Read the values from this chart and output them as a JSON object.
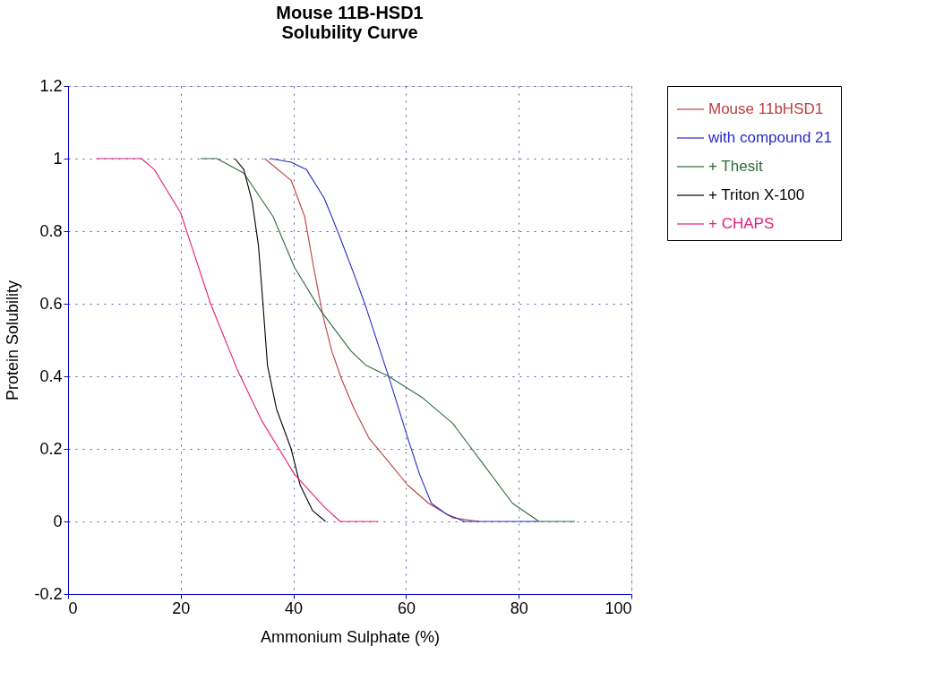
{
  "chart_data": {
    "type": "line",
    "title": "Mouse 11B-HSD1\nSolubility Curve",
    "xlabel": "Ammonium Sulphate (%)",
    "ylabel": "Protein Solubility",
    "xlim": [
      0,
      100
    ],
    "xticks": [
      0,
      20,
      40,
      60,
      80,
      100
    ],
    "ylim": [
      -0.2,
      1.2
    ],
    "yticks": [
      -0.2,
      0,
      0.2,
      0.4,
      0.6,
      0.8,
      1,
      1.2
    ],
    "grid": true,
    "legend": "right",
    "marker": "none",
    "line_style": "solid",
    "series": [
      {
        "name": "Mouse 11bHSD1",
        "color": "#c03c3c",
        "x": [
          34.9,
          39.6,
          42,
          43.6,
          45.2,
          46.8,
          48.6,
          50.8,
          53.4,
          56.6,
          60.3,
          64,
          68.3,
          73
        ],
        "values": [
          1,
          0.94,
          0.84,
          0.7,
          0.57,
          0.47,
          0.39,
          0.31,
          0.23,
          0.17,
          0.1,
          0.05,
          0.01,
          0
        ]
      },
      {
        "name": "with compound 21",
        "color": "#2828c8",
        "x": [
          35.9,
          39.6,
          42.3,
          45.5,
          48.1,
          50.8,
          52.9,
          55,
          57.1,
          58.7,
          60.3,
          62.4,
          64.5,
          67.2,
          70.4,
          83.6
        ],
        "values": [
          1,
          0.99,
          0.97,
          0.89,
          0.79,
          0.68,
          0.59,
          0.49,
          0.39,
          0.31,
          0.23,
          0.13,
          0.05,
          0.02,
          0,
          0
        ]
      },
      {
        "name": "+ Thesit",
        "color": "#2e6a3a",
        "x": [
          23.5,
          26.4,
          31.2,
          36.4,
          40.2,
          44.9,
          50.2,
          52.9,
          56.9,
          63,
          68.3,
          73.6,
          78.9,
          83.6,
          90
        ],
        "values": [
          1,
          1,
          0.96,
          0.84,
          0.7,
          0.58,
          0.47,
          0.43,
          0.4,
          0.34,
          0.27,
          0.16,
          0.05,
          0,
          0
        ]
      },
      {
        "name": "+ Triton X-100",
        "color": "#000000",
        "x": [
          29.6,
          31.2,
          32.7,
          33.8,
          34.6,
          35.4,
          37,
          39.6,
          41.2,
          43.4,
          45.7
        ],
        "values": [
          1,
          0.97,
          0.88,
          0.76,
          0.6,
          0.43,
          0.31,
          0.2,
          0.1,
          0.03,
          0
        ]
      },
      {
        "name": "+ CHAPS",
        "color": "#e0207a",
        "x": [
          5,
          13,
          15.3,
          20,
          25.3,
          30,
          34.3,
          40.2,
          45.5,
          48.3,
          55
        ],
        "values": [
          1,
          1,
          0.97,
          0.85,
          0.6,
          0.42,
          0.28,
          0.13,
          0.04,
          0,
          0
        ]
      }
    ]
  }
}
